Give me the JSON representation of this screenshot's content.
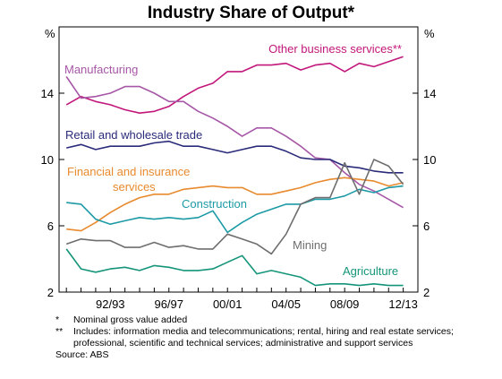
{
  "chart_data": {
    "type": "line",
    "title": "Industry Share of Output*",
    "ylabel_left": "%",
    "ylabel_right": "%",
    "ylim": [
      2,
      18
    ],
    "yticks": [
      2,
      6,
      10,
      14
    ],
    "x_labels": [
      "92/93",
      "96/97",
      "00/01",
      "04/05",
      "08/09",
      "12/13"
    ],
    "x_label_years": [
      1992.5,
      1996.5,
      2000.5,
      2004.5,
      2008.5,
      2012.5
    ],
    "xlim": [
      1989,
      2013.5
    ],
    "x": [
      1989.5,
      1990.5,
      1991.5,
      1992.5,
      1993.5,
      1994.5,
      1995.5,
      1996.5,
      1997.5,
      1998.5,
      1999.5,
      2000.5,
      2001.5,
      2002.5,
      2003.5,
      2004.5,
      2005.5,
      2006.5,
      2007.5,
      2008.5,
      2009.5,
      2010.5,
      2011.5,
      2012.5
    ],
    "grid": false,
    "series": [
      {
        "name": "Other business services**",
        "color": "#c2177a",
        "values": [
          13.3,
          13.8,
          13.5,
          13.3,
          13.0,
          12.8,
          12.9,
          13.2,
          13.8,
          14.3,
          14.6,
          15.3,
          15.3,
          15.7,
          15.7,
          15.8,
          15.4,
          15.7,
          15.8,
          15.3,
          15.8,
          15.6,
          15.9,
          16.2
        ]
      },
      {
        "name": "Manufacturing",
        "color": "#a657a6",
        "values": [
          15.0,
          13.7,
          13.8,
          14.0,
          14.4,
          14.4,
          14.0,
          13.5,
          13.5,
          12.9,
          12.5,
          12.0,
          11.4,
          11.9,
          11.9,
          11.4,
          10.8,
          10.1,
          10.0,
          9.2,
          8.5,
          8.1,
          7.6,
          7.1
        ]
      },
      {
        "name": "Retail and wholesale trade",
        "color": "#2a2a7a",
        "values": [
          10.7,
          10.9,
          10.6,
          10.8,
          10.8,
          10.8,
          11.0,
          11.1,
          10.8,
          10.8,
          10.6,
          10.4,
          10.6,
          10.8,
          10.8,
          10.5,
          10.1,
          10.0,
          10.0,
          9.6,
          9.5,
          9.3,
          9.2,
          9.2
        ]
      },
      {
        "name": "Financial and insurance services",
        "color": "#e88a2e",
        "values": [
          5.8,
          5.7,
          6.2,
          6.8,
          7.3,
          7.7,
          7.9,
          7.9,
          8.2,
          8.3,
          8.4,
          8.3,
          8.3,
          7.9,
          7.9,
          8.1,
          8.3,
          8.6,
          8.8,
          8.9,
          8.8,
          8.7,
          8.4,
          8.6
        ]
      },
      {
        "name": "Construction",
        "color": "#1c9aa6",
        "values": [
          7.4,
          7.3,
          6.4,
          6.1,
          6.3,
          6.5,
          6.4,
          6.5,
          6.4,
          6.5,
          6.9,
          5.6,
          6.2,
          6.7,
          7.0,
          7.3,
          7.3,
          7.6,
          7.6,
          7.8,
          8.2,
          8.0,
          8.3,
          8.4
        ]
      },
      {
        "name": "Mining",
        "color": "#6e6e6e",
        "values": [
          4.9,
          5.2,
          5.1,
          5.1,
          4.7,
          4.7,
          5.0,
          4.7,
          4.8,
          4.6,
          4.6,
          5.5,
          5.2,
          4.9,
          4.3,
          5.5,
          7.3,
          7.7,
          7.7,
          9.8,
          7.9,
          10.0,
          9.6,
          8.5
        ]
      },
      {
        "name": "Agriculture",
        "color": "#14957a",
        "values": [
          4.6,
          3.4,
          3.2,
          3.4,
          3.5,
          3.3,
          3.6,
          3.5,
          3.3,
          3.3,
          3.4,
          3.8,
          4.2,
          3.1,
          3.3,
          3.1,
          2.9,
          2.4,
          2.5,
          2.5,
          2.4,
          2.5,
          2.4,
          2.4
        ]
      }
    ]
  },
  "series_labels": {
    "other": "Other business services**",
    "manufacturing": "Manufacturing",
    "retail": "Retail and wholesale trade",
    "financial_line1": "Financial and insurance",
    "financial_line2": "services",
    "construction": "Construction",
    "mining": "Mining",
    "agriculture": "Agriculture"
  },
  "notes": {
    "note1_mark": "*",
    "note1_text": "Nominal gross value added",
    "note2_mark": "**",
    "note2_text": "Includes: information media and telecommunications; rental, hiring and real estate services; professional, scientific and technical services; administrative and support services",
    "source": "Source: ABS"
  }
}
